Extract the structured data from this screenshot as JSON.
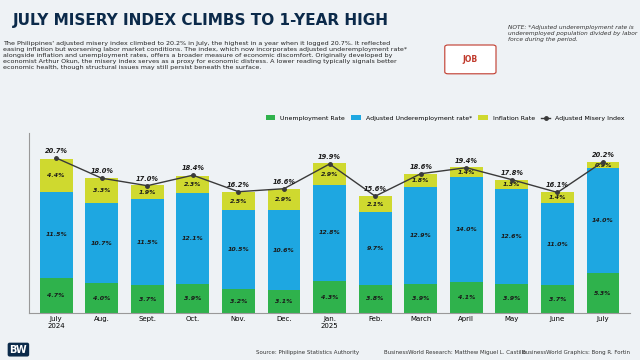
{
  "chart_data": {
    "type": "bar",
    "stacked": true,
    "title": "JULY MISERY INDEX CLIMBS TO 1-YEAR HIGH",
    "subtitle": "The Philippines' adjusted misery index climbed to 20.2% in July, the highest in a year when it logged 20.7%. It reflected easing inflation but worsening labor market conditions. The index, which now incorporates adjusted underemployment rate* alongside inflation and unemployment rates, offers a broader measure of economic discomfort. Originally developed by economist Arthur Okun, the misery index serves as a proxy for economic distress. A lower reading typically signals better economic health, though structural issues may still persist beneath the surface.",
    "note": "NOTE: *Adjusted underemployment rate is underemployed population divided by labor force during the period.",
    "illustration_label": "JOB",
    "source": "Source: Philippine Statistics Authority",
    "credits": [
      "BusinessWorld Research: Matthew Miguel L. Castillo",
      "BusinessWorld Graphics: Bong R. Fortin"
    ],
    "logo": "BW",
    "categories": [
      "July 2024",
      "Aug.",
      "Sept.",
      "Oct.",
      "Nov.",
      "Dec.",
      "Jan. 2025",
      "Feb.",
      "March",
      "April",
      "May",
      "June",
      "July"
    ],
    "ylim": [
      0,
      24
    ],
    "tick_labels": "x",
    "grid": false,
    "legend": "upper right",
    "data_labels": true,
    "series": [
      {
        "name": "Unemployment Rate",
        "type": "bar",
        "color": "#2fb24c",
        "values": [
          4.7,
          4.0,
          3.7,
          3.9,
          3.2,
          3.1,
          4.3,
          3.8,
          3.9,
          4.1,
          3.9,
          3.7,
          5.3
        ],
        "value_labels": [
          "4.7%",
          "4.0%",
          "3.7%",
          "3.9%",
          "3.2%",
          "3.1%",
          "4.3%",
          "3.8%",
          "3.9%",
          "4.1%",
          "3.9%",
          "3.7%",
          "5.3%"
        ]
      },
      {
        "name": "Adjusted Underemployment rate*",
        "type": "bar",
        "color": "#1ea7e1",
        "values": [
          11.5,
          10.7,
          11.5,
          12.1,
          10.5,
          10.6,
          12.8,
          9.7,
          12.9,
          14.0,
          12.6,
          11.0,
          14.0
        ],
        "value_labels": [
          "11.5%",
          "10.7%",
          "11.5%",
          "12.1%",
          "10.5%",
          "10.6%",
          "12.8%",
          "9.7%",
          "12.9%",
          "14.0%",
          "12.6%",
          "11.0%",
          "14.0%"
        ]
      },
      {
        "name": "Inflation Rate",
        "type": "bar",
        "color": "#cfd92f",
        "values": [
          4.4,
          3.3,
          1.9,
          2.3,
          2.5,
          2.9,
          2.9,
          2.1,
          1.8,
          1.4,
          1.3,
          1.4,
          0.9
        ],
        "value_labels": [
          "4.4%",
          "3.3%",
          "1.9%",
          "2.3%",
          "2.5%",
          "2.9%",
          "2.9%",
          "2.1%",
          "1.8%",
          "1.4%",
          "1.3%",
          "1.4%",
          "0.9%"
        ]
      },
      {
        "name": "Adjusted Misery Index",
        "type": "line",
        "color": "#3a3a3a",
        "marker": "o",
        "line_style": "solid",
        "values": [
          20.7,
          18.0,
          17.0,
          18.4,
          16.2,
          16.6,
          19.9,
          15.6,
          18.6,
          19.4,
          17.8,
          16.1,
          20.2
        ],
        "value_labels": [
          "20.7%",
          "18.0%",
          "17.0%",
          "18.4%",
          "16.2%",
          "16.6%",
          "19.9%",
          "15.6%",
          "18.6%",
          "19.4%",
          "17.8%",
          "16.1%",
          "20.2%"
        ]
      }
    ]
  }
}
